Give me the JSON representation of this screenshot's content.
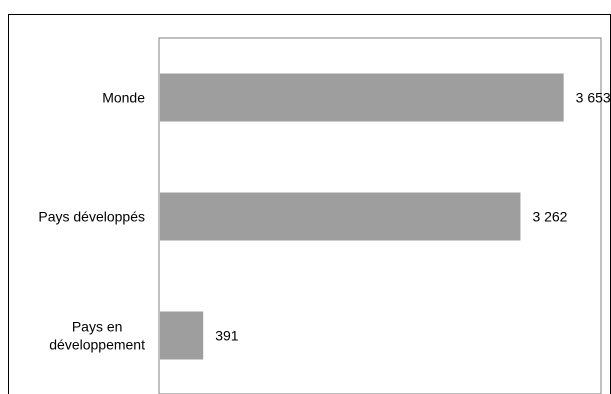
{
  "chart_data": {
    "type": "bar",
    "orientation": "horizontal",
    "categories": [
      "Monde",
      "Pays développés",
      "Pays en développement"
    ],
    "category_lines": [
      [
        "Monde"
      ],
      [
        "Pays développés"
      ],
      [
        "Pays en",
        "développement"
      ]
    ],
    "values": [
      3653,
      3262,
      391
    ],
    "value_labels": [
      "3 653",
      "3 262",
      "391"
    ],
    "title": "",
    "xlabel": "",
    "ylabel": "",
    "xlim": [
      0,
      4000
    ],
    "grid": false,
    "legend": "none",
    "bar_color": "#9e9e9e"
  }
}
